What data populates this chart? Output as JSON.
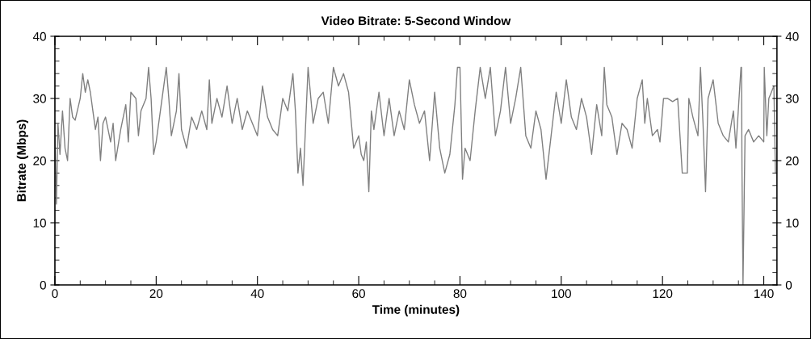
{
  "chart_data": {
    "type": "line",
    "title": "Video Bitrate: 5-Second Window",
    "xlabel": "Time (minutes)",
    "ylabel": "Bitrate (Mbps)",
    "x": [
      0,
      0.3,
      0.6,
      1,
      1.5,
      2,
      2.5,
      3,
      3.5,
      4,
      5,
      5.5,
      6,
      6.5,
      7,
      7.5,
      8,
      8.5,
      9,
      9.5,
      10,
      11,
      11.5,
      12,
      13,
      14,
      14.5,
      15,
      16,
      16.5,
      17,
      18,
      18.5,
      19,
      19.5,
      20,
      21,
      22,
      22.5,
      23,
      24,
      24.5,
      25,
      26,
      27,
      28,
      29,
      30,
      30.5,
      31,
      32,
      33,
      34,
      35,
      36,
      37,
      38,
      39,
      40,
      41,
      42,
      43,
      44,
      45,
      46,
      47,
      47.5,
      48,
      48.5,
      49,
      50,
      51,
      52,
      53,
      54,
      55,
      56,
      57,
      58,
      59,
      60,
      60.5,
      61,
      61.5,
      62,
      62.5,
      63,
      64,
      65,
      66,
      67,
      68,
      69,
      70,
      71,
      72,
      73,
      74,
      75,
      76,
      77,
      78,
      79,
      79.5,
      80,
      80.5,
      81,
      82,
      83,
      84,
      85,
      86,
      87,
      88,
      89,
      90,
      91,
      92,
      93,
      94,
      95,
      96,
      97,
      98,
      99,
      100,
      101,
      102,
      103,
      104,
      105,
      106,
      107,
      108,
      108.5,
      109,
      110,
      111,
      112,
      113,
      114,
      115,
      116,
      116.5,
      117,
      118,
      119,
      119.5,
      120.2,
      121,
      122,
      123,
      123.9,
      124.4,
      124.9,
      125.2,
      126,
      127,
      127.5,
      128,
      128.5,
      129,
      130,
      131,
      132,
      133,
      134,
      134.5,
      135.5,
      135.6,
      135.7,
      135.9,
      136.3,
      137,
      138,
      139,
      140,
      140.1,
      140.6,
      141,
      142,
      142.3
    ],
    "series": [
      {
        "color": "#808080",
        "values": [
          24,
          13,
          26,
          21,
          28,
          22,
          20,
          30,
          27,
          26.5,
          30,
          34,
          31,
          33,
          31,
          28,
          25,
          27,
          20,
          26,
          27,
          23,
          26,
          20,
          25,
          29,
          23,
          31,
          30,
          24,
          28,
          30,
          35,
          30,
          21,
          23,
          29,
          35,
          30,
          24,
          28,
          34,
          25,
          22,
          27,
          25,
          28,
          25,
          33,
          26,
          30,
          27,
          32,
          26,
          30,
          25,
          28,
          26,
          24,
          32,
          27,
          25,
          24,
          30,
          28,
          34,
          28,
          18,
          22,
          16,
          35,
          26,
          30,
          31,
          26,
          35,
          32,
          34,
          31,
          22,
          24,
          21,
          20,
          23,
          15,
          28,
          25,
          31,
          24,
          30,
          24,
          28,
          25,
          33,
          29,
          26,
          28,
          20,
          31,
          22,
          18,
          21,
          29,
          35,
          35,
          17,
          22,
          20,
          28,
          35,
          30,
          35,
          24,
          28,
          35,
          26,
          30,
          35,
          24,
          22,
          28,
          25,
          17,
          24,
          31,
          26,
          33,
          27,
          25,
          30,
          27,
          21,
          29,
          24,
          35,
          29,
          27,
          21,
          26,
          25,
          22,
          30,
          33,
          26,
          30,
          24,
          25,
          23,
          30,
          30,
          29.5,
          30,
          18,
          18,
          18,
          30,
          27,
          24,
          35,
          26,
          15,
          30,
          33,
          26,
          24,
          23,
          28,
          22,
          35,
          35,
          18,
          0,
          24,
          25,
          23,
          24,
          23,
          35,
          24,
          30,
          32,
          18
        ]
      }
    ],
    "xlim": [
      0,
      142.6
    ],
    "xticks": [
      0,
      20,
      40,
      60,
      80,
      100,
      120,
      140
    ],
    "ylim": [
      0,
      40
    ],
    "yticks": [
      0,
      10,
      20,
      30,
      40
    ],
    "y2lim": [
      0,
      40
    ],
    "y2ticks": [
      0,
      10,
      20,
      30,
      40
    ],
    "grid": false,
    "legend": false,
    "marker": "none",
    "line_style": "solid"
  }
}
